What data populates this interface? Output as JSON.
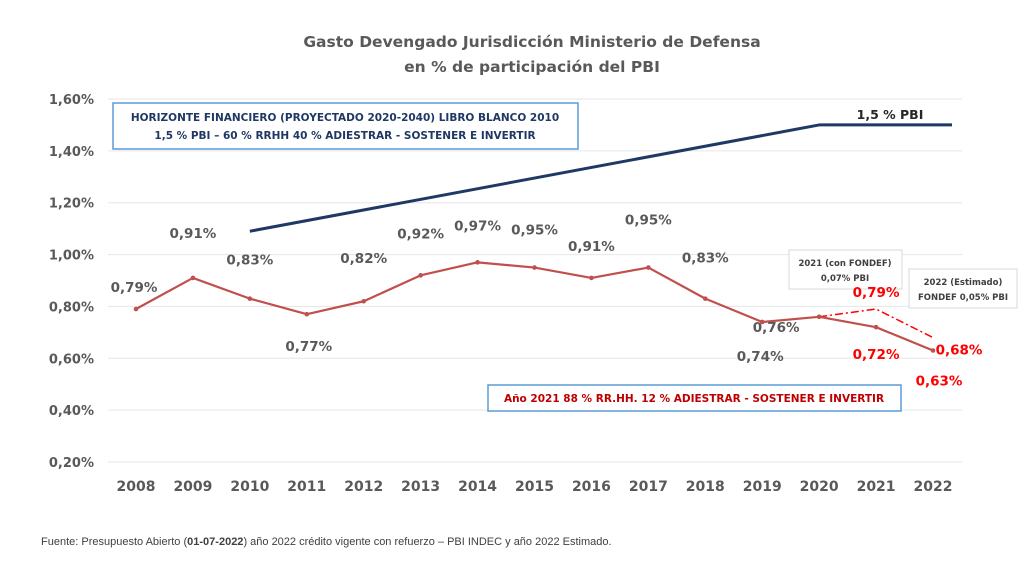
{
  "chart_data": {
    "type": "line",
    "title": "Gasto Devengado Jurisdicción Ministerio de Defensa",
    "subtitle": "en % de participación del PBI",
    "xlabel": "",
    "ylabel": "",
    "ylim": [
      0.2,
      1.6
    ],
    "yticks": [
      0.2,
      0.4,
      0.6,
      0.8,
      1.0,
      1.2,
      1.4,
      1.6
    ],
    "ytick_labels": [
      "0,20%",
      "0,40%",
      "0,60%",
      "0,80%",
      "1,00%",
      "1,20%",
      "1,40%",
      "1,60%"
    ],
    "grid": true,
    "legend": "none",
    "categories": [
      "2008",
      "2009",
      "2010",
      "2011",
      "2012",
      "2013",
      "2014",
      "2015",
      "2016",
      "2017",
      "2018",
      "2019",
      "2020",
      "2021",
      "2022"
    ],
    "series": [
      {
        "name": "Gasto Devengado (% PBI)",
        "color": "#c0504d",
        "style": "solid",
        "values": [
          0.79,
          0.91,
          0.83,
          0.77,
          0.82,
          0.92,
          0.97,
          0.95,
          0.91,
          0.95,
          0.83,
          0.74,
          0.76,
          0.72,
          0.63
        ],
        "labels": [
          "0,79%",
          "0,91%",
          "0,83%",
          "0,77%",
          "0,82%",
          "0,92%",
          "0,97%",
          "0,95%",
          "0,91%",
          "0,95%",
          "0,83%",
          "0,74%",
          "0,76%",
          "0,72%",
          "0,63%"
        ],
        "label_colors": [
          "#595959",
          "#595959",
          "#595959",
          "#595959",
          "#595959",
          "#595959",
          "#595959",
          "#595959",
          "#595959",
          "#595959",
          "#595959",
          "#595959",
          "#595959",
          "#ff0000",
          "#ff0000"
        ]
      },
      {
        "name": "Con FONDEF",
        "color": "#ff0000",
        "style": "dash-dot",
        "x": [
          "2020",
          "2021",
          "2022"
        ],
        "values": [
          0.76,
          0.79,
          0.68
        ],
        "labels": [
          null,
          "0,79%",
          "0,68%"
        ]
      },
      {
        "name": "Horizonte Financiero Libro Blanco",
        "color": "#1f3864",
        "style": "solid",
        "x": [
          "2010",
          "2020",
          "2022"
        ],
        "values": [
          1.09,
          1.5,
          1.5
        ],
        "end_label": "1,5 % PBI"
      }
    ],
    "annotations": {
      "horizonte_box": {
        "line1": "HORIZONTE FINANCIERO (PROYECTADO 2020-2040) LIBRO BLANCO 2010",
        "line2": "1,5 % PBI – 60 % RRHH 40 % ADIESTRAR - SOSTENER E INVERTIR",
        "border_color": "#5b9bd5",
        "text_color": "#1f3864"
      },
      "anio2021_box": {
        "text": "Año 2021  88 % RR.HH. 12 % ADIESTRAR - SOSTENER E INVERTIR",
        "border_color": "#5b9bd5",
        "text_color": "#c00000"
      },
      "fondef2021_box": {
        "line1": "2021 (con FONDEF)",
        "line2": "0,07% PBI"
      },
      "fondef2022_box": {
        "line1": "2022 (Estimado)",
        "line2": "FONDEF 0,05% PBI"
      }
    }
  },
  "footer": {
    "source_prefix": "Fuente: Presupuesto Abierto (",
    "source_date": "01-07-2022",
    "source_suffix": ")  año 2022 crédito vigente con refuerzo – PBI INDEC y año 2022 Estimado."
  }
}
